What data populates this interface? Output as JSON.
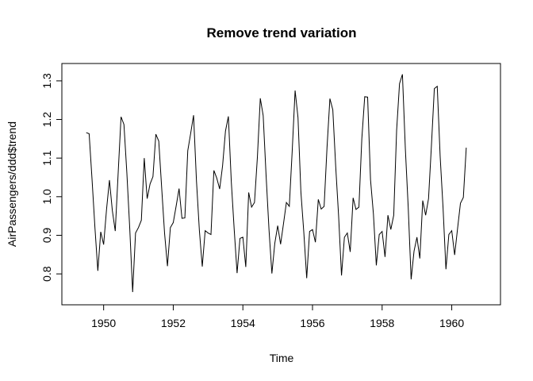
{
  "chart_data": {
    "type": "line",
    "title": "Remove trend variation",
    "xlabel": "Time",
    "ylabel": "AirPassengers/ddd$trend",
    "xlim": [
      1948.8,
      1961.4
    ],
    "ylim": [
      0.72,
      1.345
    ],
    "x_ticks": [
      1950,
      1952,
      1954,
      1956,
      1958,
      1960
    ],
    "x_tick_labels": [
      "1950",
      "1952",
      "1954",
      "1956",
      "1958",
      "1960"
    ],
    "y_ticks": [
      0.8,
      0.9,
      1.0,
      1.1,
      1.2,
      1.3
    ],
    "y_tick_labels": [
      "0.8",
      "0.9",
      "1.0",
      "1.1",
      "1.2",
      "1.3"
    ],
    "grid": false,
    "line_color": "#000000",
    "x_start": 1949.5,
    "x_step": 0.08333333,
    "series": [
      {
        "values": [
          1.166,
          1.163,
          1.045,
          0.92,
          0.808,
          0.909,
          0.876,
          0.967,
          1.043,
          0.964,
          0.911,
          1.06,
          1.207,
          1.187,
          1.062,
          0.918,
          0.753,
          0.906,
          0.92,
          0.939,
          1.1,
          0.995,
          1.033,
          1.052,
          1.162,
          1.144,
          1.024,
          0.906,
          0.82,
          0.92,
          0.933,
          0.976,
          1.021,
          0.944,
          0.945,
          1.119,
          1.164,
          1.211,
          1.041,
          0.913,
          0.819,
          0.912,
          0.906,
          0.902,
          1.068,
          1.048,
          1.02,
          1.08,
          1.17,
          1.208,
          1.04,
          0.916,
          0.802,
          0.892,
          0.895,
          0.818,
          1.011,
          0.973,
          0.985,
          1.102,
          1.255,
          1.21,
          1.055,
          0.915,
          0.801,
          0.879,
          0.925,
          0.877,
          0.93,
          0.985,
          0.975,
          1.118,
          1.275,
          1.205,
          1.012,
          0.908,
          0.789,
          0.91,
          0.915,
          0.882,
          0.993,
          0.968,
          0.975,
          1.127,
          1.254,
          1.225,
          1.078,
          0.95,
          0.796,
          0.895,
          0.906,
          0.857,
          0.997,
          0.967,
          0.973,
          1.15,
          1.259,
          1.258,
          1.044,
          0.955,
          0.822,
          0.902,
          0.91,
          0.844,
          0.952,
          0.915,
          0.952,
          1.172,
          1.293,
          1.317,
          1.125,
          0.972,
          0.786,
          0.859,
          0.895,
          0.84,
          0.99,
          0.952,
          0.995,
          1.133,
          1.28,
          1.286,
          1.105,
          0.972,
          0.812,
          0.902,
          0.912,
          0.849,
          0.917,
          0.983,
          0.998,
          1.127
        ]
      }
    ]
  }
}
